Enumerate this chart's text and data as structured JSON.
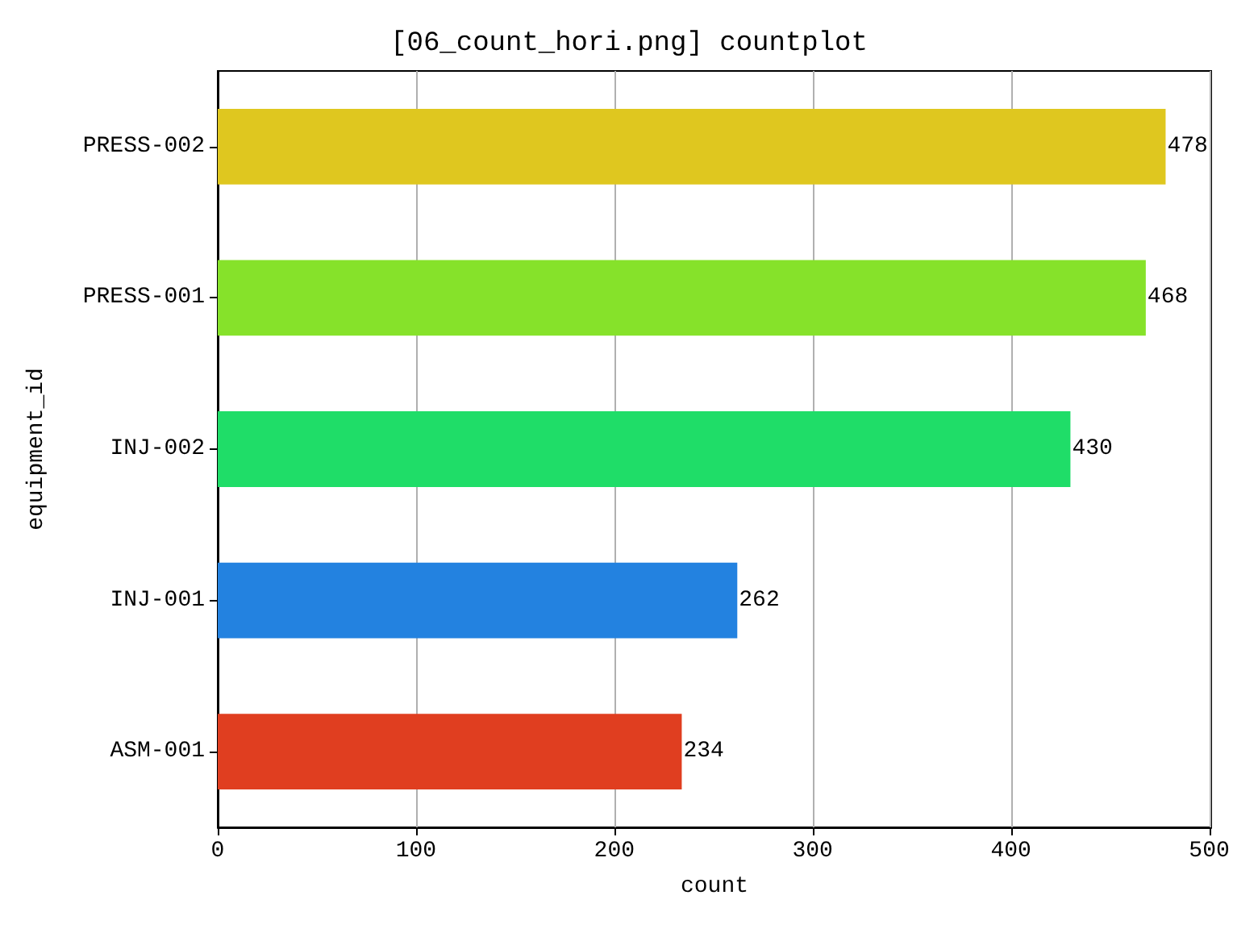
{
  "chart_data": {
    "type": "bar",
    "orientation": "horizontal",
    "title": "[06_count_hori.png] countplot",
    "xlabel": "count",
    "ylabel": "equipment_id",
    "categories": [
      "PRESS-002",
      "PRESS-001",
      "INJ-002",
      "INJ-001",
      "ASM-001"
    ],
    "values": [
      478,
      468,
      430,
      262,
      234
    ],
    "colors": [
      "#dfc71f",
      "#86e22a",
      "#1fdd68",
      "#2382e0",
      "#e03e20"
    ],
    "xlim": [
      0,
      501
    ],
    "xticks": [
      0,
      100,
      200,
      300,
      400,
      500
    ],
    "grid": "x",
    "data_labels": true
  }
}
